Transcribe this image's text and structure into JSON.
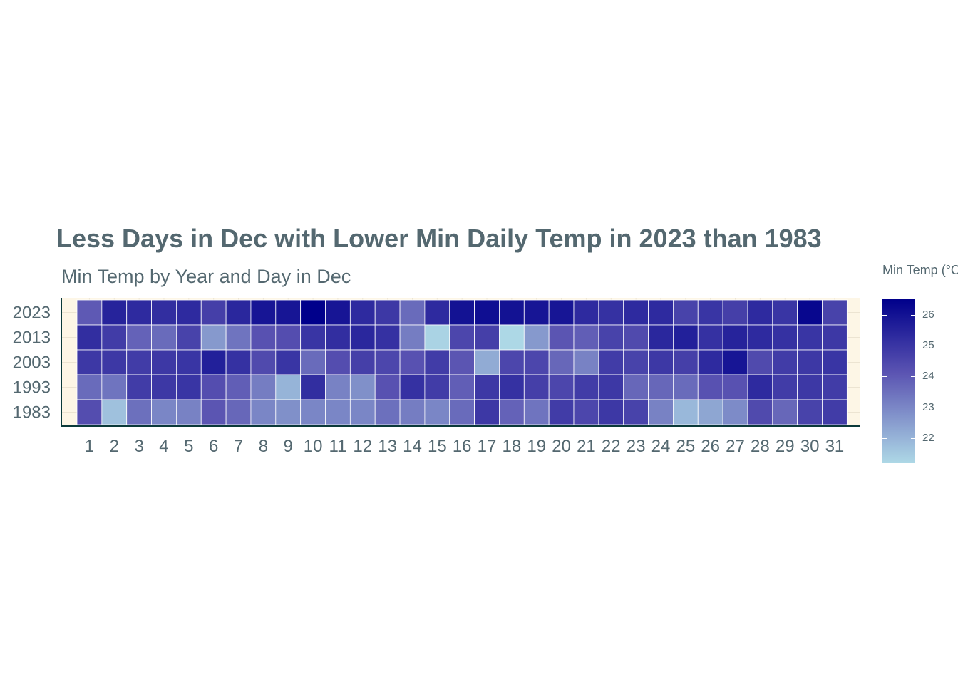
{
  "chart_data": {
    "type": "heatmap",
    "title": "Less Days in Dec with Lower Min Daily Temp in 2023 than 1983",
    "subtitle": "Min Temp by Year and Day in Dec",
    "xlabel": "",
    "ylabel": "",
    "x_categories": [
      "1",
      "2",
      "3",
      "4",
      "5",
      "6",
      "7",
      "8",
      "9",
      "10",
      "11",
      "12",
      "13",
      "14",
      "15",
      "16",
      "17",
      "18",
      "19",
      "20",
      "21",
      "22",
      "23",
      "24",
      "25",
      "26",
      "27",
      "28",
      "29",
      "30",
      "31"
    ],
    "y_categories": [
      "2023",
      "2013",
      "2003",
      "1993",
      "1983"
    ],
    "values": [
      [
        24.0,
        25.5,
        25.3,
        25.2,
        25.3,
        24.7,
        25.4,
        25.9,
        25.9,
        26.5,
        25.9,
        25.3,
        24.9,
        23.6,
        25.3,
        26.0,
        26.1,
        26.0,
        25.9,
        25.9,
        25.3,
        25.1,
        25.3,
        25.3,
        24.6,
        25.0,
        24.7,
        25.3,
        25.0,
        26.3,
        24.6
      ],
      [
        25.2,
        24.8,
        23.8,
        23.6,
        24.6,
        22.6,
        23.4,
        24.2,
        24.3,
        25.0,
        25.2,
        25.4,
        25.1,
        23.2,
        21.3,
        24.5,
        24.7,
        21.2,
        22.6,
        24.1,
        23.9,
        24.6,
        24.4,
        25.4,
        25.6,
        25.1,
        25.5,
        25.3,
        25.1,
        25.0,
        24.9
      ],
      [
        24.9,
        24.9,
        24.8,
        24.9,
        25.0,
        25.6,
        25.1,
        24.4,
        25.0,
        23.6,
        24.3,
        24.7,
        24.5,
        24.2,
        24.8,
        24.1,
        22.2,
        24.5,
        24.5,
        23.7,
        23.1,
        24.8,
        24.6,
        24.9,
        24.7,
        25.3,
        25.9,
        24.4,
        24.8,
        24.9,
        25.0
      ],
      [
        23.6,
        23.4,
        24.8,
        24.9,
        25.0,
        24.3,
        23.9,
        23.2,
        22.0,
        25.2,
        23.1,
        22.8,
        24.2,
        25.1,
        24.8,
        23.9,
        24.9,
        25.1,
        24.7,
        24.5,
        24.8,
        24.9,
        23.7,
        23.7,
        23.6,
        24.2,
        24.2,
        25.3,
        24.8,
        24.9,
        24.8
      ],
      [
        24.3,
        21.7,
        23.5,
        23.0,
        23.1,
        24.1,
        23.7,
        23.0,
        22.8,
        23.0,
        23.0,
        23.0,
        23.5,
        23.2,
        23.0,
        23.6,
        24.9,
        23.8,
        23.4,
        24.8,
        24.5,
        24.9,
        24.6,
        23.1,
        21.9,
        22.3,
        22.9,
        24.4,
        23.7,
        24.6,
        24.8
      ]
    ],
    "colorbar": {
      "title": "Min Temp (°C)",
      "ticks": [
        22,
        23,
        24,
        25,
        26
      ],
      "min": 21.2,
      "max": 26.5,
      "color_low": "#add8e6",
      "color_mid": "#5b54b2",
      "color_high": "#00008b"
    },
    "panel_background": "#fdf6e6",
    "grid": true,
    "legend_position": "right"
  },
  "colors": {
    "title": "#546870",
    "axis_line": "#0b3a3a"
  }
}
